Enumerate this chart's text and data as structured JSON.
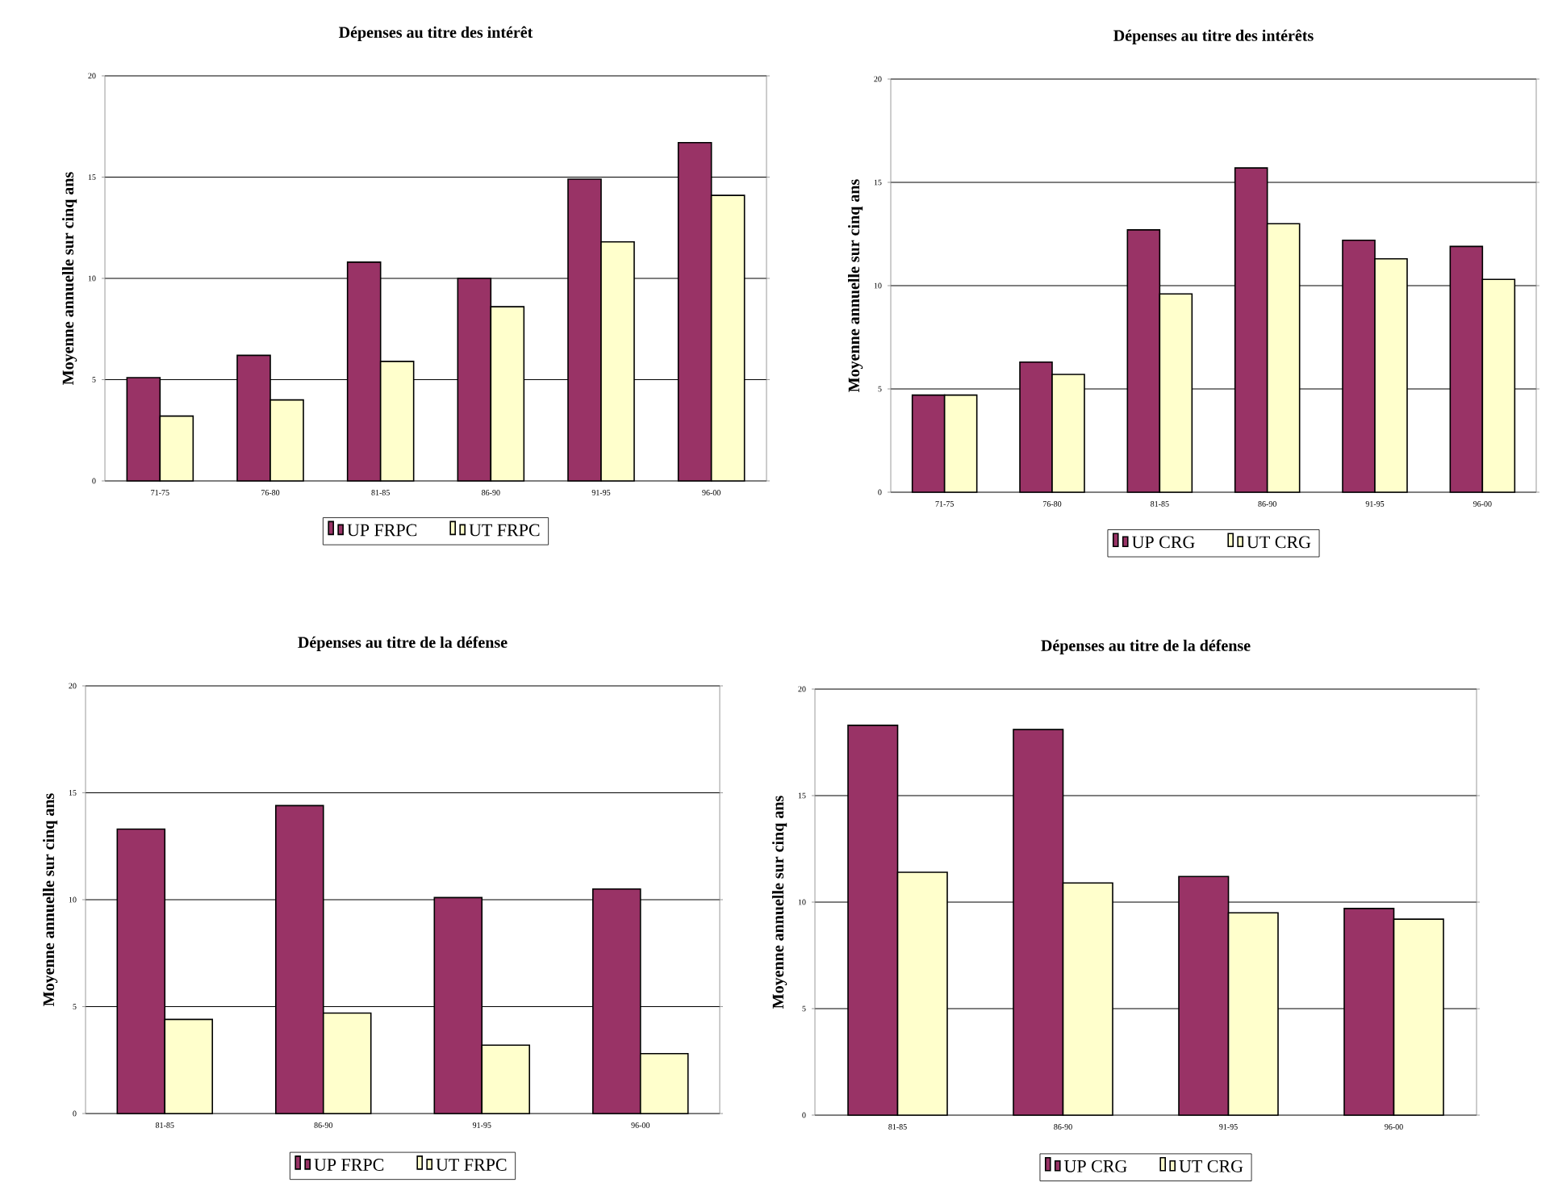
{
  "chart_data": [
    {
      "type": "bar",
      "title": "Dépenses au titre des intérêt",
      "ylabel": "Moyenne annuelle sur cinq ans",
      "categories": [
        "71-75",
        "76-80",
        "81-85",
        "86-90",
        "91-95",
        "96-00"
      ],
      "series": [
        {
          "name": "UP FRPC",
          "color": "#993366",
          "values": [
            5.1,
            6.2,
            10.8,
            10.0,
            14.9,
            16.7
          ]
        },
        {
          "name": "UT FRPC",
          "color": "#ffffcc",
          "values": [
            3.2,
            4.0,
            5.9,
            8.6,
            11.8,
            14.1
          ]
        }
      ],
      "ylim": [
        0,
        20
      ],
      "yticks": [
        0,
        5,
        10,
        15,
        20
      ],
      "grid": "y",
      "legend": "bottom"
    },
    {
      "type": "bar",
      "title": "Dépenses au titre des intérêts",
      "ylabel": "Moyenne annuelle sur cinq ans",
      "categories": [
        "71-75",
        "76-80",
        "81-85",
        "86-90",
        "91-95",
        "96-00"
      ],
      "series": [
        {
          "name": "UP CRG",
          "color": "#993366",
          "values": [
            4.7,
            6.3,
            12.7,
            15.7,
            12.2,
            11.9
          ]
        },
        {
          "name": "UT CRG",
          "color": "#ffffcc",
          "values": [
            4.7,
            5.7,
            9.6,
            13.0,
            11.3,
            10.3
          ]
        }
      ],
      "ylim": [
        0,
        20
      ],
      "yticks": [
        0,
        5,
        10,
        15,
        20
      ],
      "grid": "y",
      "legend": "bottom"
    },
    {
      "type": "bar",
      "title": "Dépenses au titre de la défense",
      "ylabel": "Moyenne annuelle sur cinq ans",
      "categories": [
        "81-85",
        "86-90",
        "91-95",
        "96-00"
      ],
      "series": [
        {
          "name": "UP FRPC",
          "color": "#993366",
          "values": [
            13.3,
            14.4,
            10.1,
            10.5
          ]
        },
        {
          "name": "UT FRPC",
          "color": "#ffffcc",
          "values": [
            4.4,
            4.7,
            3.2,
            2.8
          ]
        }
      ],
      "ylim": [
        0,
        20
      ],
      "yticks": [
        0,
        5,
        10,
        15,
        20
      ],
      "grid": "y",
      "legend": "bottom"
    },
    {
      "type": "bar",
      "title": "Dépenses au titre de la défense",
      "ylabel": "Moyenne annuelle sur cinq ans",
      "categories": [
        "81-85",
        "86-90",
        "91-95",
        "96-00"
      ],
      "series": [
        {
          "name": "UP CRG",
          "color": "#993366",
          "values": [
            18.3,
            18.1,
            11.2,
            9.7
          ]
        },
        {
          "name": "UT CRG",
          "color": "#ffffcc",
          "values": [
            11.4,
            10.9,
            9.5,
            9.2
          ]
        }
      ],
      "ylim": [
        0,
        20
      ],
      "yticks": [
        0,
        5,
        10,
        15,
        20
      ],
      "grid": "y",
      "legend": "bottom"
    }
  ]
}
